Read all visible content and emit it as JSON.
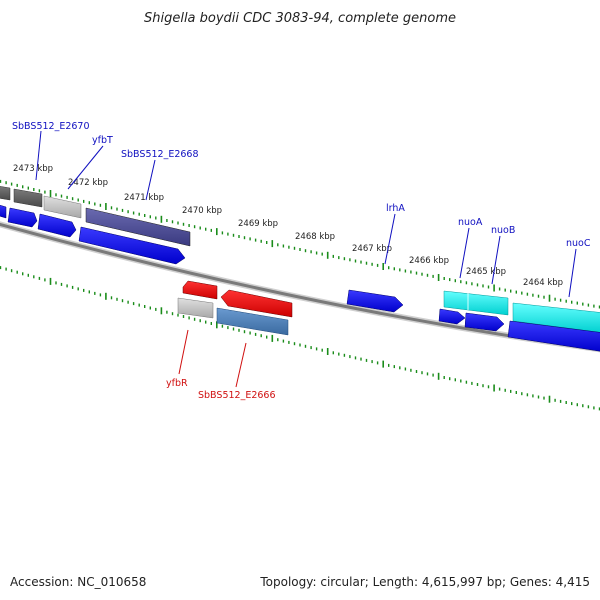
{
  "title": "Shigella boydii CDC 3083-94, complete genome",
  "footer": {
    "accession": "Accession: NC_010658",
    "summary": "Topology: circular; Length: 4,615,997 bp; Genes: 4,415"
  },
  "colors": {
    "backbone": "#7a7a7a",
    "tick_green": "#1a8c1a",
    "forward_label": "#1010c0",
    "reverse_label": "#d01010"
  },
  "ticks": [
    "2473 kbp",
    "2472 kbp",
    "2471 kbp",
    "2470 kbp",
    "2469 kbp",
    "2468 kbp",
    "2467 kbp",
    "2466 kbp",
    "2465 kbp",
    "2464 kbp"
  ],
  "labels": {
    "forward": [
      "SbBS512_E2670",
      "yfbT",
      "SbBS512_E2668",
      "lrhA",
      "nuoA",
      "nuoB",
      "nuoC"
    ],
    "reverse": [
      "yfbR",
      "SbBS512_E2666"
    ]
  }
}
